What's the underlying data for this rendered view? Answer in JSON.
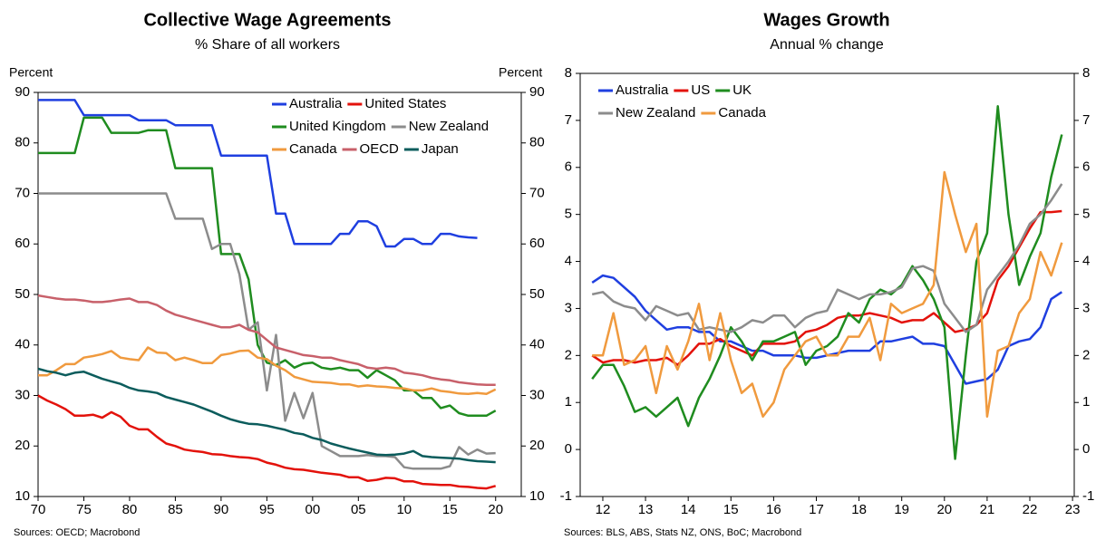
{
  "chart_data": [
    {
      "type": "line",
      "title": "Collective Wage Agreements",
      "subtitle": "% Share of all workers",
      "ylabel": "Percent",
      "y2label": "Percent",
      "source": "Sources: OECD; Macrobond",
      "x": [
        1970,
        1971,
        1972,
        1973,
        1974,
        1975,
        1976,
        1977,
        1978,
        1979,
        1980,
        1981,
        1982,
        1983,
        1984,
        1985,
        1986,
        1987,
        1988,
        1989,
        1990,
        1991,
        1992,
        1993,
        1994,
        1995,
        1996,
        1997,
        1998,
        1999,
        2000,
        2001,
        2002,
        2003,
        2004,
        2005,
        2006,
        2007,
        2008,
        2009,
        2010,
        2011,
        2012,
        2013,
        2014,
        2015,
        2016,
        2017,
        2018,
        2019,
        2020
      ],
      "xlim": [
        1970,
        2022.8
      ],
      "xticks": [
        {
          "value": 1970,
          "label": "70"
        },
        {
          "value": 1975,
          "label": "75"
        },
        {
          "value": 1980,
          "label": "80"
        },
        {
          "value": 1985,
          "label": "85"
        },
        {
          "value": 1990,
          "label": "90"
        },
        {
          "value": 1995,
          "label": "95"
        },
        {
          "value": 2000,
          "label": "00"
        },
        {
          "value": 2005,
          "label": "05"
        },
        {
          "value": 2010,
          "label": "10"
        },
        {
          "value": 2015,
          "label": "15"
        },
        {
          "value": 2020,
          "label": "20"
        }
      ],
      "ylim": [
        10,
        90
      ],
      "yticks": [
        10,
        20,
        30,
        40,
        50,
        60,
        70,
        80,
        90
      ],
      "y2lim": [
        10,
        90
      ],
      "y2ticks": [
        10,
        20,
        30,
        40,
        50,
        60,
        70,
        80,
        90
      ],
      "series": [
        {
          "name": "Australia",
          "color": "#1f3fe0",
          "values": [
            88.5,
            88.5,
            88.5,
            88.5,
            88.5,
            85.5,
            85.5,
            85.5,
            85.5,
            85.5,
            85.5,
            84.5,
            84.5,
            84.5,
            84.5,
            83.5,
            83.5,
            83.5,
            83.5,
            83.5,
            77.5,
            77.5,
            77.5,
            77.5,
            77.5,
            77.5,
            66,
            66,
            60,
            60,
            60,
            60,
            60,
            62,
            62,
            64.5,
            64.5,
            63.5,
            59.5,
            59.5,
            61,
            61,
            60,
            60,
            62,
            62,
            61.5,
            61.3,
            61.2,
            null,
            null
          ]
        },
        {
          "name": "United States",
          "color": "#e3120b",
          "values": [
            30,
            29,
            28.2,
            27.3,
            26,
            26,
            26.2,
            25.6,
            26.7,
            25.8,
            24,
            23.3,
            23.3,
            21.8,
            20.5,
            20,
            19.3,
            19,
            18.8,
            18.4,
            18.3,
            18,
            17.8,
            17.7,
            17.4,
            16.7,
            16.3,
            15.7,
            15.4,
            15.3,
            15,
            14.7,
            14.5,
            14.3,
            13.8,
            13.8,
            13.1,
            13.3,
            13.7,
            13.6,
            13,
            13,
            12.5,
            12.4,
            12.3,
            12.3,
            12,
            11.9,
            11.7,
            11.6,
            12.1
          ]
        },
        {
          "name": "United Kingdom",
          "color": "#1f8c1f",
          "values": [
            78,
            78,
            78,
            78,
            78,
            85,
            85,
            85,
            82,
            82,
            82,
            82,
            82.5,
            82.5,
            82.5,
            75,
            75,
            75,
            75,
            75,
            58,
            58,
            58,
            53,
            40,
            36.5,
            36,
            37,
            35.5,
            36.3,
            36.5,
            35.5,
            35.2,
            35.5,
            35,
            35,
            33.5,
            35,
            34,
            33,
            31,
            31,
            29.5,
            29.5,
            27.5,
            28,
            26.5,
            26,
            26,
            26,
            27
          ]
        },
        {
          "name": "New Zealand",
          "color": "#8c8c8c",
          "values": [
            70,
            70,
            70,
            70,
            70,
            70,
            70,
            70,
            70,
            70,
            70,
            70,
            70,
            70,
            70,
            65,
            65,
            65,
            65,
            59,
            60,
            60,
            54,
            43,
            44.5,
            31,
            42,
            25,
            30.5,
            25.5,
            30.5,
            20,
            19,
            18,
            18,
            18,
            18.2,
            18,
            18,
            17.8,
            15.8,
            15.5,
            15.5,
            15.5,
            15.5,
            16,
            19.8,
            18.3,
            19.3,
            18.5,
            18.6
          ]
        },
        {
          "name": "Canada",
          "color": "#f09a3e",
          "values": [
            34,
            34,
            35,
            36.2,
            36.2,
            37.5,
            37.8,
            38.2,
            38.8,
            37.5,
            37.2,
            37,
            39.5,
            38.5,
            38.4,
            37,
            37.5,
            37,
            36.4,
            36.4,
            38,
            38.3,
            38.8,
            38.9,
            37.5,
            37.2,
            35.9,
            35,
            33.7,
            33.2,
            32.7,
            32.6,
            32.5,
            32.2,
            32.2,
            31.8,
            32,
            31.8,
            31.7,
            31.5,
            31.4,
            31,
            31,
            31.4,
            30.9,
            30.7,
            30.4,
            30.3,
            30.5,
            30.3,
            31.2
          ]
        },
        {
          "name": "OECD",
          "color": "#c8606a",
          "values": [
            49.8,
            49.5,
            49.2,
            49,
            49,
            48.8,
            48.5,
            48.5,
            48.7,
            49,
            49.2,
            48.5,
            48.5,
            47.9,
            46.8,
            46,
            45.5,
            45,
            44.5,
            44,
            43.5,
            43.5,
            44,
            43,
            42.5,
            41,
            39.5,
            39,
            38.5,
            38,
            37.8,
            37.5,
            37.5,
            37,
            36.6,
            36.2,
            35.5,
            35.3,
            35.5,
            35.3,
            34.5,
            34.3,
            34,
            33.5,
            33.2,
            33,
            32.6,
            32.4,
            32.2,
            32.1,
            32.1
          ]
        },
        {
          "name": "Japan",
          "color": "#0b5c5c",
          "values": [
            35.3,
            34.8,
            34.5,
            34,
            34.5,
            34.7,
            34,
            33.3,
            32.8,
            32.3,
            31.5,
            31,
            30.8,
            30.5,
            29.7,
            29.2,
            28.7,
            28.2,
            27.5,
            26.8,
            26,
            25.3,
            24.8,
            24.4,
            24.3,
            24,
            23.6,
            23.2,
            22.6,
            22.3,
            21.6,
            21.2,
            20.5,
            20,
            19.5,
            19.1,
            18.7,
            18.3,
            18.2,
            18.3,
            18.5,
            19,
            18,
            17.8,
            17.7,
            17.6,
            17.5,
            17.2,
            17,
            16.9,
            16.8
          ]
        }
      ]
    },
    {
      "type": "line",
      "title": "Wages Growth",
      "subtitle": "Annual % change",
      "source": "Sources: BLS, ABS, Stats NZ, ONS, BoC; Macrobond",
      "x": [
        2011.75,
        2012,
        2012.25,
        2012.5,
        2012.75,
        2013,
        2013.25,
        2013.5,
        2013.75,
        2014,
        2014.25,
        2014.5,
        2014.75,
        2015,
        2015.25,
        2015.5,
        2015.75,
        2016,
        2016.25,
        2016.5,
        2016.75,
        2017,
        2017.25,
        2017.5,
        2017.75,
        2018,
        2018.25,
        2018.5,
        2018.75,
        2019,
        2019.25,
        2019.5,
        2019.75,
        2020,
        2020.25,
        2020.5,
        2020.75,
        2021,
        2021.25,
        2021.5,
        2021.75,
        2022,
        2022.25,
        2022.5,
        2022.75
      ],
      "xlim": [
        2011.47,
        2023.04
      ],
      "xticks": [
        {
          "value": 2012,
          "label": "12"
        },
        {
          "value": 2013,
          "label": "13"
        },
        {
          "value": 2014,
          "label": "14"
        },
        {
          "value": 2015,
          "label": "15"
        },
        {
          "value": 2016,
          "label": "16"
        },
        {
          "value": 2017,
          "label": "17"
        },
        {
          "value": 2018,
          "label": "18"
        },
        {
          "value": 2019,
          "label": "19"
        },
        {
          "value": 2020,
          "label": "20"
        },
        {
          "value": 2021,
          "label": "21"
        },
        {
          "value": 2022,
          "label": "22"
        },
        {
          "value": 2023,
          "label": "23"
        }
      ],
      "ylim": [
        -1,
        8
      ],
      "yticks": [
        -1,
        0,
        1,
        2,
        3,
        4,
        5,
        6,
        7,
        8
      ],
      "y2lim": [
        -1,
        8
      ],
      "y2ticks": [
        -1,
        0,
        1,
        2,
        3,
        4,
        5,
        6,
        7,
        8
      ],
      "series": [
        {
          "name": "Australia",
          "color": "#1f3fe0",
          "values": [
            3.55,
            3.7,
            3.65,
            3.45,
            3.25,
            2.95,
            2.75,
            2.55,
            2.6,
            2.6,
            2.5,
            2.5,
            2.3,
            2.3,
            2.2,
            2.1,
            2.1,
            2.0,
            2.0,
            2.0,
            1.95,
            1.95,
            2.0,
            2.05,
            2.1,
            2.1,
            2.1,
            2.3,
            2.3,
            2.35,
            2.4,
            2.25,
            2.25,
            2.2,
            1.8,
            1.4,
            1.45,
            1.5,
            1.7,
            2.2,
            2.3,
            2.35,
            2.6,
            3.2,
            3.35
          ]
        },
        {
          "name": "US",
          "color": "#e3120b",
          "values": [
            2.0,
            1.85,
            1.9,
            1.9,
            1.85,
            1.9,
            1.9,
            1.95,
            1.8,
            2.0,
            2.25,
            2.25,
            2.35,
            2.2,
            2.1,
            2.0,
            2.25,
            2.25,
            2.25,
            2.3,
            2.5,
            2.55,
            2.65,
            2.8,
            2.85,
            2.85,
            2.9,
            2.85,
            2.8,
            2.7,
            2.75,
            2.75,
            2.9,
            2.7,
            2.5,
            2.55,
            2.65,
            2.9,
            3.6,
            3.9,
            4.3,
            4.7,
            5.05,
            5.05,
            5.07
          ]
        },
        {
          "name": "UK",
          "color": "#1f8c1f",
          "values": [
            1.5,
            1.8,
            1.8,
            1.35,
            0.8,
            0.9,
            0.7,
            0.9,
            1.1,
            0.5,
            1.1,
            1.5,
            2.0,
            2.6,
            2.3,
            1.9,
            2.3,
            2.3,
            2.4,
            2.5,
            1.8,
            2.1,
            2.2,
            2.4,
            2.9,
            2.7,
            3.2,
            3.4,
            3.3,
            3.5,
            3.9,
            3.6,
            3.2,
            2.6,
            -0.2,
            2.0,
            4.0,
            4.6,
            7.3,
            5.0,
            3.5,
            4.1,
            4.6,
            5.8,
            6.7
          ]
        },
        {
          "name": "New Zealand",
          "color": "#8c8c8c",
          "values": [
            3.3,
            3.35,
            3.15,
            3.05,
            3.0,
            2.75,
            3.05,
            2.95,
            2.85,
            2.9,
            2.55,
            2.6,
            2.55,
            2.5,
            2.6,
            2.75,
            2.7,
            2.85,
            2.85,
            2.6,
            2.8,
            2.9,
            2.95,
            3.4,
            3.3,
            3.2,
            3.3,
            3.3,
            3.35,
            3.45,
            3.85,
            3.9,
            3.8,
            3.1,
            2.8,
            2.5,
            2.65,
            3.4,
            3.7,
            4.0,
            4.35,
            4.8,
            5.0,
            5.3,
            5.65
          ]
        },
        {
          "name": "Canada",
          "color": "#f09a3e",
          "values": [
            2.0,
            2.0,
            2.9,
            1.8,
            1.9,
            2.2,
            1.2,
            2.2,
            1.7,
            2.3,
            3.1,
            1.9,
            2.9,
            1.9,
            1.2,
            1.4,
            0.7,
            1.0,
            1.7,
            2.0,
            2.3,
            2.4,
            2.0,
            2.0,
            2.4,
            2.4,
            2.8,
            1.9,
            3.1,
            2.9,
            3.0,
            3.1,
            3.5,
            5.9,
            5.0,
            4.2,
            4.8,
            0.7,
            2.1,
            2.2,
            2.9,
            3.2,
            4.2,
            3.7,
            4.4
          ]
        }
      ]
    }
  ]
}
